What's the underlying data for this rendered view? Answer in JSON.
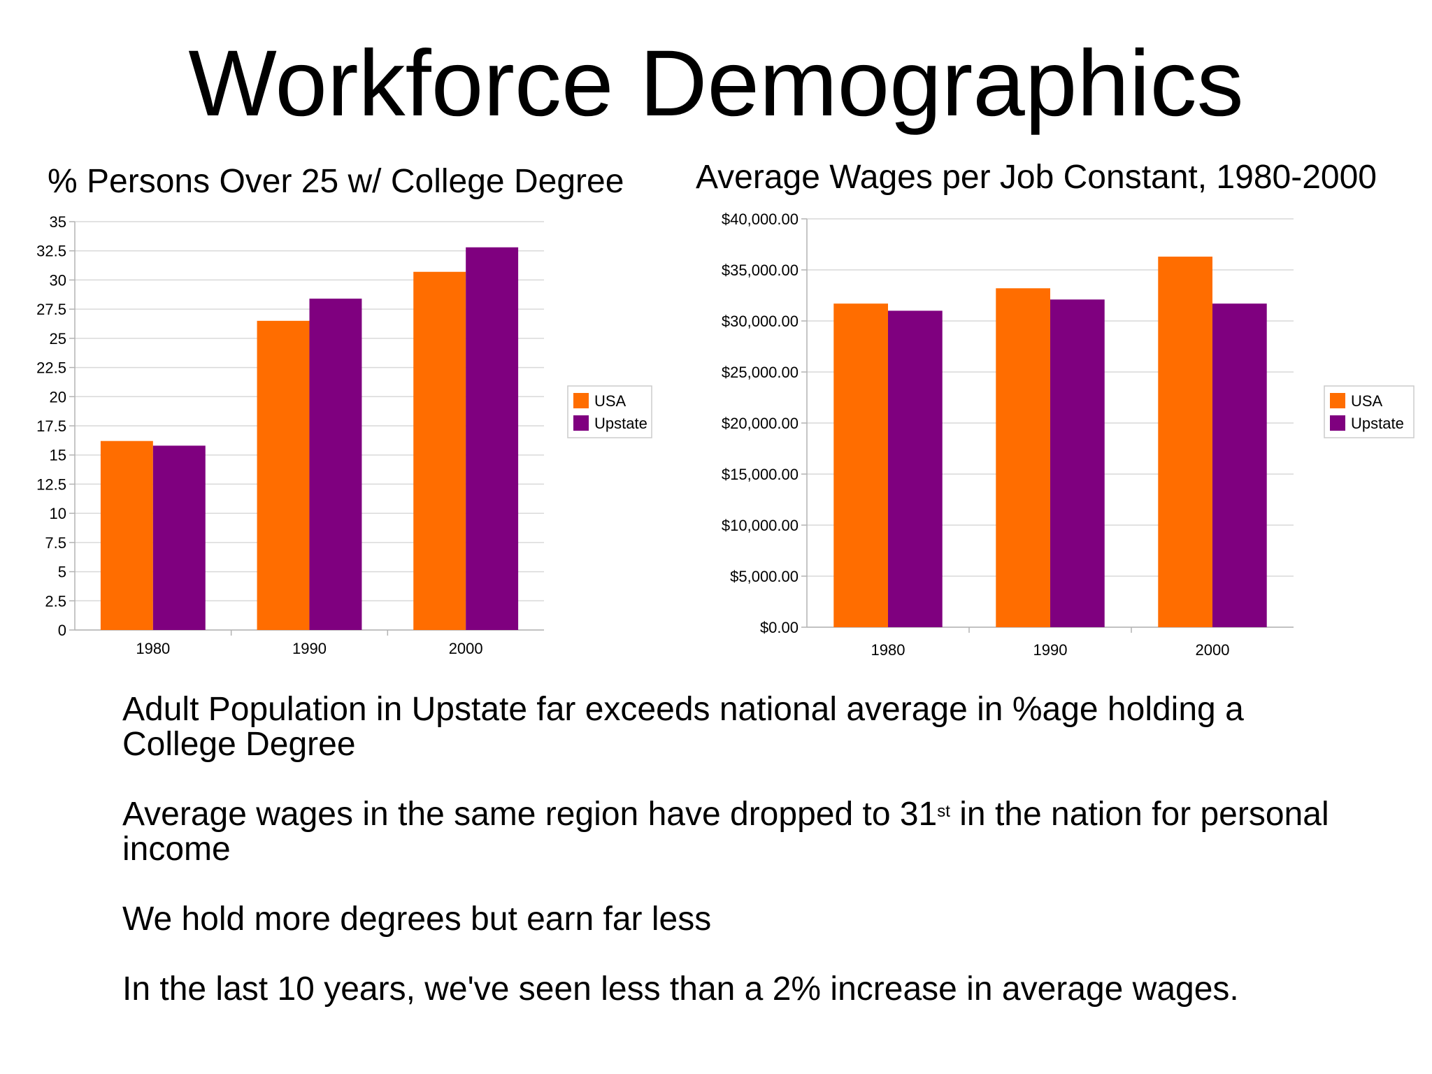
{
  "slide": {
    "title": "Workforce Demographics",
    "bullets": [
      {
        "text": "Adult Population in Upstate far exceeds national average in %age holding a College Degree"
      },
      {
        "pre": "Average wages in the same region have dropped to 31",
        "sup": "st",
        "post": " in the nation for personal income"
      },
      {
        "text": "We hold more degrees but earn far less"
      },
      {
        "text": "In the last 10 years, we've seen less than a 2% increase in average wages."
      }
    ]
  },
  "colors": {
    "usa": "#ff6d00",
    "upstate": "#7f007f",
    "grid": "#d9d9d9",
    "axis": "#b3b3b3"
  },
  "chart_data": [
    {
      "type": "bar",
      "title": "% Persons Over 25 w/ College Degree",
      "categories": [
        "1980",
        "1990",
        "2000"
      ],
      "series": [
        {
          "name": "USA",
          "values": [
            16.2,
            26.5,
            30.7
          ]
        },
        {
          "name": "Upstate",
          "values": [
            15.8,
            28.4,
            32.8
          ]
        }
      ],
      "ylim": [
        0,
        35
      ],
      "yticks": [
        0,
        2.5,
        5,
        7.5,
        10,
        12.5,
        15,
        17.5,
        20,
        22.5,
        25,
        27.5,
        30,
        32.5,
        35
      ],
      "ytick_labels": [
        "0",
        "2.5",
        "5",
        "7.5",
        "10",
        "12.5",
        "15",
        "17.5",
        "20",
        "22.5",
        "25",
        "27.5",
        "30",
        "32.5",
        "35"
      ],
      "grid": true,
      "legend": "right"
    },
    {
      "type": "bar",
      "title": "Average Wages per Job Constant, 1980-2000",
      "categories": [
        "1980",
        "1990",
        "2000"
      ],
      "series": [
        {
          "name": "USA",
          "values": [
            31700,
            33200,
            36300
          ]
        },
        {
          "name": "Upstate",
          "values": [
            31000,
            32100,
            31700
          ]
        }
      ],
      "ylim": [
        0,
        40000
      ],
      "yticks": [
        0,
        5000,
        10000,
        15000,
        20000,
        25000,
        30000,
        35000,
        40000
      ],
      "ytick_labels": [
        "$0.00",
        "$5,000.00",
        "$10,000.00",
        "$15,000.00",
        "$20,000.00",
        "$25,000.00",
        "$30,000.00",
        "$35,000.00",
        "$40,000.00"
      ],
      "grid": true,
      "legend": "right"
    }
  ]
}
